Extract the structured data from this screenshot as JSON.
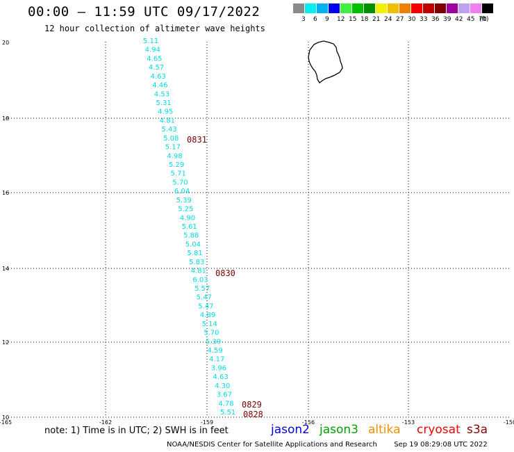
{
  "title": "00:00 – 11:59 UTC 09/17/2022",
  "subtitle": "12 hour collection of altimeter wave heights",
  "legend": {
    "colors": [
      "#8a8a8a",
      "#00f0f0",
      "#00b0f0",
      "#0000f0",
      "#40f040",
      "#00c000",
      "#009000",
      "#f0f000",
      "#f0c000",
      "#f08000",
      "#f00000",
      "#c00000",
      "#800000",
      "#a000a0",
      "#c0a0f0",
      "#f080f0",
      "#000000"
    ],
    "labels": [
      "3",
      "6",
      "9",
      "12",
      "15",
      "18",
      "21",
      "24",
      "27",
      "30",
      "33",
      "36",
      "39",
      "42",
      "45",
      "70",
      "(ft)"
    ]
  },
  "axes": {
    "x_ticks": [
      "-165",
      "-162",
      "-159",
      "-156",
      "-153",
      "-150"
    ],
    "y_ticks": [
      "10",
      "12",
      "14",
      "16",
      "18",
      "20"
    ]
  },
  "swh_readings": [
    "5.11",
    "4.94",
    "4.65",
    "4.57",
    "4.63",
    "4.46",
    "4.53",
    "5.31",
    "4.95",
    "4.81",
    "5.43",
    "5.08",
    "5.17",
    "4.98",
    "5.29",
    "5.71",
    "5.70",
    "6.04",
    "5.39",
    "5.25",
    "4.90",
    "5.61",
    "5.88",
    "5.04",
    "5.81",
    "5.83",
    "4.81",
    "6.03",
    "5.57",
    "5.47",
    "5.47",
    "4.89",
    "5.14",
    "5.70",
    "5.39",
    "4.59",
    "4.17",
    "3.96",
    "4.63",
    "4.30",
    "3.67",
    "4.78",
    "5.51"
  ],
  "pass_times": [
    "0831",
    "0830",
    "0829",
    "0828"
  ],
  "note": "note: 1) Time is in UTC; 2) SWH is in feet",
  "satellites": [
    {
      "name": "jason2",
      "color": "#0000e0"
    },
    {
      "name": "jason3",
      "color": "#00a000"
    },
    {
      "name": "altika",
      "color": "#f09000"
    },
    {
      "name": "cryosat",
      "color": "#f00000"
    },
    {
      "name": "s3a",
      "color": "#8a0000"
    }
  ],
  "credit_left": "NOAA/NESDIS Center for Satellite Applications and Research",
  "credit_right": "Sep 19 08:29:08 UTC 2022"
}
